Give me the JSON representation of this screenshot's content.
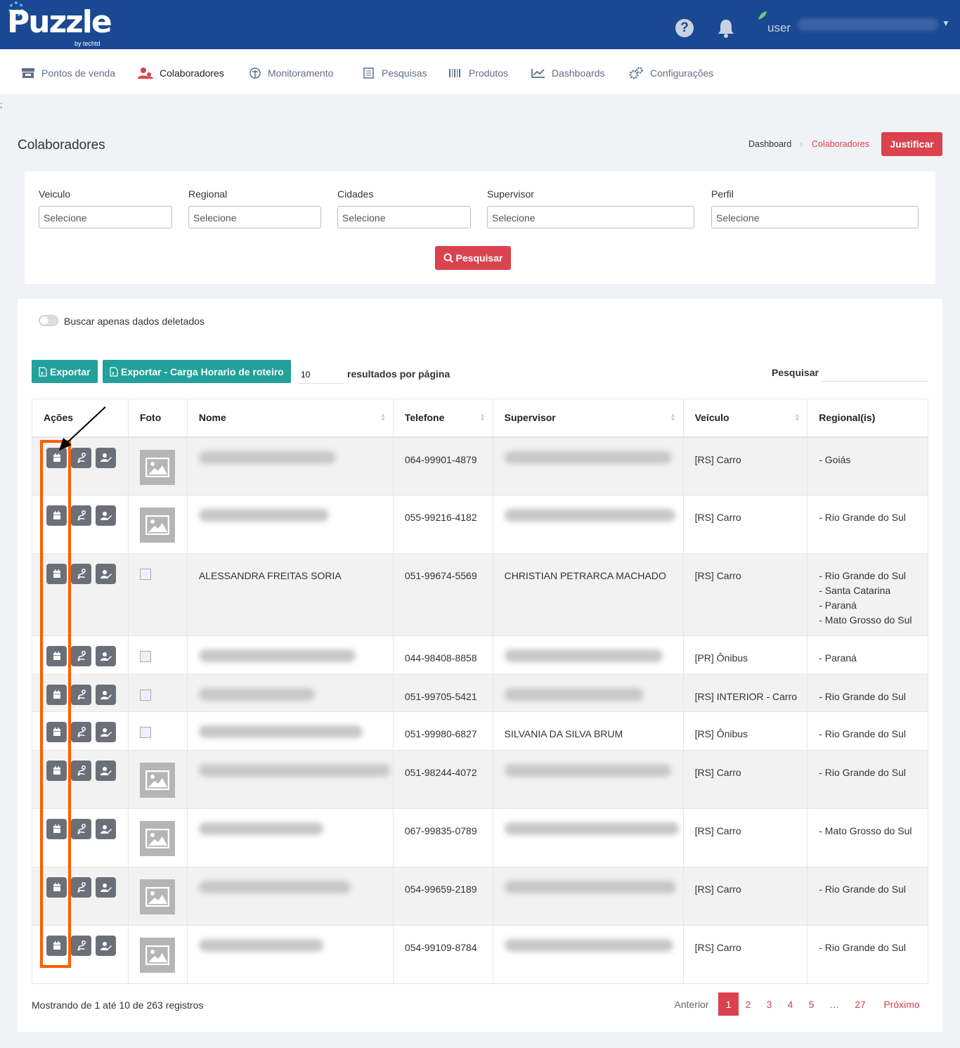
{
  "app": {
    "logo": "Puzzle",
    "logo_sub": "by techtd",
    "user": "user"
  },
  "nav": [
    {
      "label": "Pontos de venda",
      "icon": "store-icon"
    },
    {
      "label": "Colaboradores",
      "icon": "users-icon",
      "active": true
    },
    {
      "label": "Monitoramento",
      "icon": "tree-icon"
    },
    {
      "label": "Pesquisas",
      "icon": "clipboard-icon"
    },
    {
      "label": "Produtos",
      "icon": "barcode-icon"
    },
    {
      "label": "Dashboards",
      "icon": "chart-icon"
    },
    {
      "label": "Configurações",
      "icon": "cogs-icon"
    }
  ],
  "stray_text": ";",
  "page": {
    "title": "Colaboradores",
    "breadcrumb": {
      "home": "Dashboard",
      "current": "Colaboradores"
    },
    "justify_button": "Justificar"
  },
  "filters": {
    "fields": [
      {
        "label": "Veiculo",
        "placeholder": "Selecione"
      },
      {
        "label": "Regional",
        "placeholder": "Selecione"
      },
      {
        "label": "Cidades",
        "placeholder": "Selecione"
      },
      {
        "label": "Supervisor",
        "placeholder": "Selecione"
      },
      {
        "label": "Perfil",
        "placeholder": "Selecione"
      }
    ],
    "search_button": "Pesquisar"
  },
  "table_controls": {
    "deleted_toggle_label": "Buscar apenas dados deletados",
    "export_button": "Exportar",
    "export_schedule_button": "Exportar - Carga Horario de roteiro",
    "page_length": "10",
    "page_length_label": "resultados por página",
    "search_label": "Pesquisar"
  },
  "table": {
    "columns": [
      "Ações",
      "Foto",
      "Nome",
      "Telefone",
      "Supervisor",
      "Veículo",
      "Regional(is)"
    ],
    "rows": [
      {
        "photo": "placeholder",
        "nome": "",
        "telefone": "064-99901-4879",
        "supervisor": "",
        "veiculo": "[RS] Carro",
        "regionais": [
          "- Goiás"
        ]
      },
      {
        "photo": "placeholder",
        "nome": "",
        "telefone": "055-99216-4182",
        "supervisor": "",
        "veiculo": "[RS] Carro",
        "regionais": [
          "- Rio Grande do Sul"
        ]
      },
      {
        "photo": "broken",
        "nome": "ALESSANDRA FREITAS SORIA",
        "telefone": "051-99674-5569",
        "supervisor": "CHRISTIAN PETRARCA MACHADO",
        "veiculo": "[RS] Carro",
        "regionais": [
          "- Rio Grande do Sul",
          "- Santa Catarina",
          "- Paraná",
          "- Mato Grosso do Sul"
        ]
      },
      {
        "photo": "broken",
        "nome": "",
        "telefone": "044-98408-8858",
        "supervisor": "",
        "veiculo": "[PR] Ônibus",
        "regionais": [
          "- Paraná"
        ]
      },
      {
        "photo": "broken",
        "nome": "",
        "telefone": "051-99705-5421",
        "supervisor": "",
        "veiculo": "[RS] INTERIOR - Carro",
        "regionais": [
          "- Rio Grande do Sul"
        ]
      },
      {
        "photo": "broken",
        "nome": "",
        "telefone": "051-99980-6827",
        "supervisor": "SILVANIA DA SILVA BRUM",
        "veiculo": "[RS] Ônibus",
        "regionais": [
          "- Rio Grande do Sul"
        ]
      },
      {
        "photo": "placeholder",
        "nome": "",
        "telefone": "051-98244-4072",
        "supervisor": "",
        "veiculo": "[RS] Carro",
        "regionais": [
          "- Rio Grande do Sul"
        ]
      },
      {
        "photo": "placeholder",
        "nome": "",
        "telefone": "067-99835-0789",
        "supervisor": "",
        "veiculo": "[RS] Carro",
        "regionais": [
          "- Mato Grosso do Sul"
        ]
      },
      {
        "photo": "placeholder",
        "nome": "",
        "telefone": "054-99659-2189",
        "supervisor": "",
        "veiculo": "[RS] Carro",
        "regionais": [
          "- Rio Grande do Sul"
        ]
      },
      {
        "photo": "placeholder",
        "nome": "",
        "telefone": "054-99109-8784",
        "supervisor": "",
        "veiculo": "[RS] Carro",
        "regionais": [
          "- Rio Grande do Sul"
        ]
      }
    ]
  },
  "footer": {
    "info": "Mostrando de 1 até 10 de 263 registros",
    "prev": "Anterior",
    "pages": [
      "1",
      "2",
      "3",
      "4",
      "5",
      "…",
      "27"
    ],
    "active_page": "1",
    "next": "Próximo"
  },
  "colors": {
    "brand": "#1b4892",
    "accent": "#d9424e",
    "teal": "#21a19a",
    "annotation": "#ff5e00"
  }
}
